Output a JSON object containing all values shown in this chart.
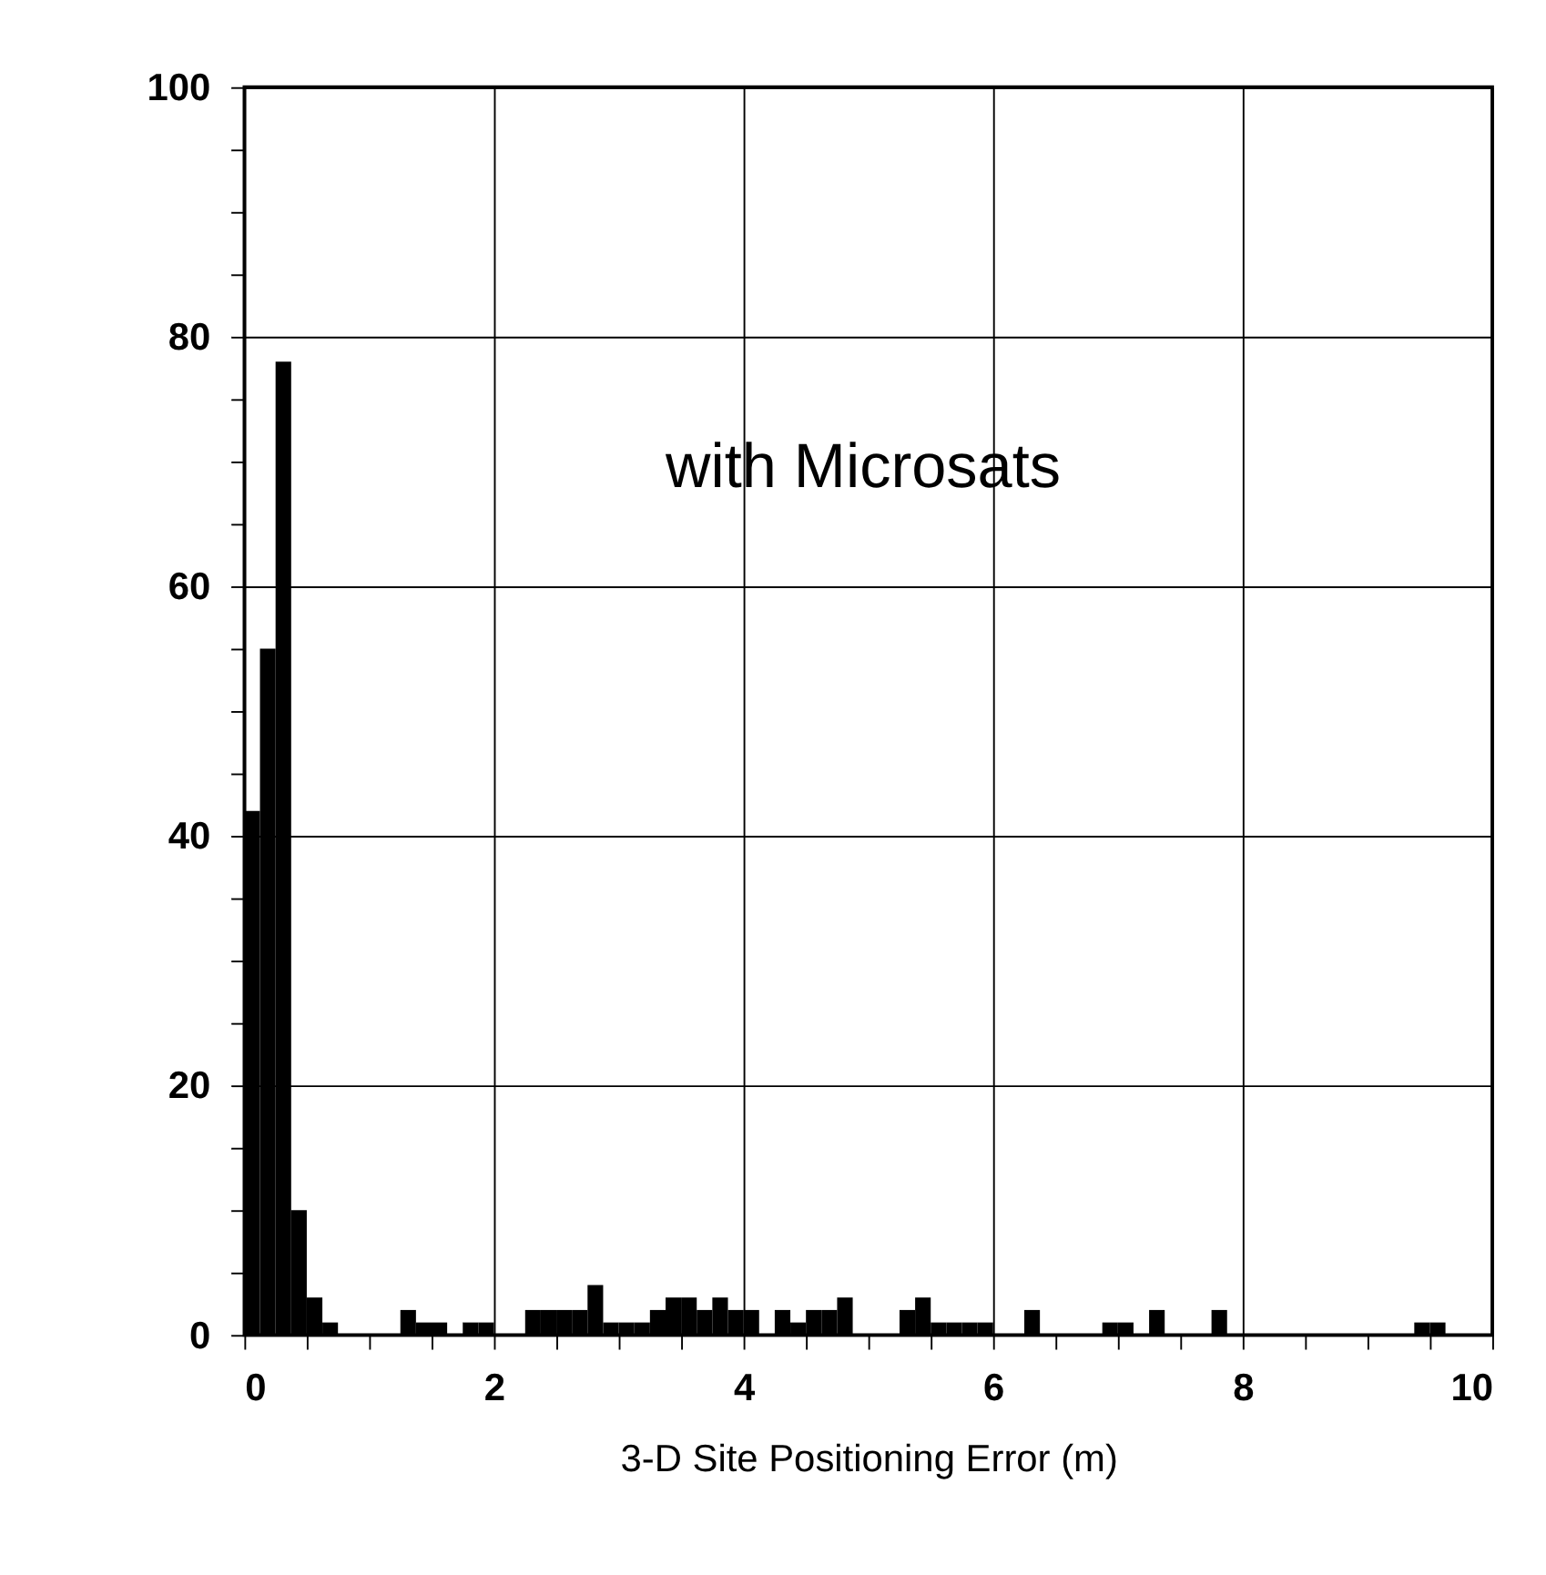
{
  "chart_data": {
    "type": "histogram",
    "xlabel": "3-D Site Positioning Error (m)",
    "annotations": [
      "with Microsats"
    ],
    "bins": [
      0,
      0.125,
      0.25,
      0.375,
      0.5,
      0.625,
      0.75,
      0.875,
      1,
      1.125,
      1.25,
      1.375,
      1.5,
      1.625,
      1.75,
      1.875,
      2,
      2.125,
      2.25,
      2.375,
      2.5,
      2.625,
      2.75,
      2.875,
      3,
      3.125,
      3.25,
      3.375,
      3.5,
      3.625,
      3.75,
      3.875,
      4,
      4.125,
      4.25,
      4.375,
      4.5,
      4.625,
      4.75,
      4.875,
      5,
      5.125,
      5.25,
      5.375,
      5.5,
      5.625,
      5.75,
      5.875,
      6,
      6.125,
      6.25,
      6.375,
      6.5,
      6.625,
      6.75,
      6.875,
      7,
      7.125,
      7.25,
      7.375,
      7.5,
      7.625,
      7.75,
      7.875,
      8,
      8.125,
      8.25,
      8.375,
      8.5,
      8.625,
      8.75,
      8.875,
      9,
      9.125,
      9.25,
      9.375,
      9.5,
      9.625,
      9.75,
      9.875,
      10
    ],
    "values": [
      42,
      55,
      78,
      10,
      3,
      1,
      0,
      0,
      0,
      0,
      2,
      1,
      1,
      0,
      1,
      1,
      0,
      0,
      2,
      2,
      2,
      2,
      4,
      1,
      1,
      1,
      2,
      3,
      3,
      2,
      3,
      2,
      2,
      0,
      2,
      1,
      2,
      2,
      3,
      0,
      0,
      0,
      2,
      3,
      1,
      1,
      1,
      1,
      0,
      0,
      2,
      0,
      0,
      0,
      0,
      1,
      1,
      0,
      2,
      0,
      0,
      0,
      2,
      0,
      0,
      0,
      0,
      0,
      0,
      0,
      0,
      0,
      0,
      0,
      0,
      1,
      1,
      0,
      0,
      0
    ],
    "color": "#000000",
    "xlim": [
      0,
      10
    ],
    "xticks": [
      0,
      {
        "value": 0.5,
        "label": null
      },
      {
        "value": 1,
        "label": null
      },
      {
        "value": 1.5,
        "label": null
      },
      2,
      {
        "value": 2.5,
        "label": null
      },
      {
        "value": 3,
        "label": null
      },
      {
        "value": 3.5,
        "label": null
      },
      4,
      {
        "value": 4.5,
        "label": null
      },
      {
        "value": 5,
        "label": null
      },
      {
        "value": 5.5,
        "label": null
      },
      6,
      {
        "value": 6.5,
        "label": null
      },
      {
        "value": 7,
        "label": null
      },
      {
        "value": 7.5,
        "label": null
      },
      8,
      {
        "value": 8.5,
        "label": null
      },
      {
        "value": 9,
        "label": null
      },
      {
        "value": 9.5,
        "label": null
      },
      10
    ],
    "ylim": [
      0,
      100
    ],
    "yticks": [
      0,
      {
        "value": 5,
        "label": null
      },
      {
        "value": 10,
        "label": null
      },
      {
        "value": 15,
        "label": null
      },
      20,
      {
        "value": 25,
        "label": null
      },
      {
        "value": 30,
        "label": null
      },
      {
        "value": 35,
        "label": null
      },
      40,
      {
        "value": 45,
        "label": null
      },
      {
        "value": 50,
        "label": null
      },
      {
        "value": 55,
        "label": null
      },
      60,
      {
        "value": 65,
        "label": null
      },
      {
        "value": 70,
        "label": null
      },
      {
        "value": 75,
        "label": null
      },
      80,
      {
        "value": 85,
        "label": null
      },
      {
        "value": 90,
        "label": null
      },
      {
        "value": 95,
        "label": null
      },
      100
    ],
    "grid": true
  }
}
